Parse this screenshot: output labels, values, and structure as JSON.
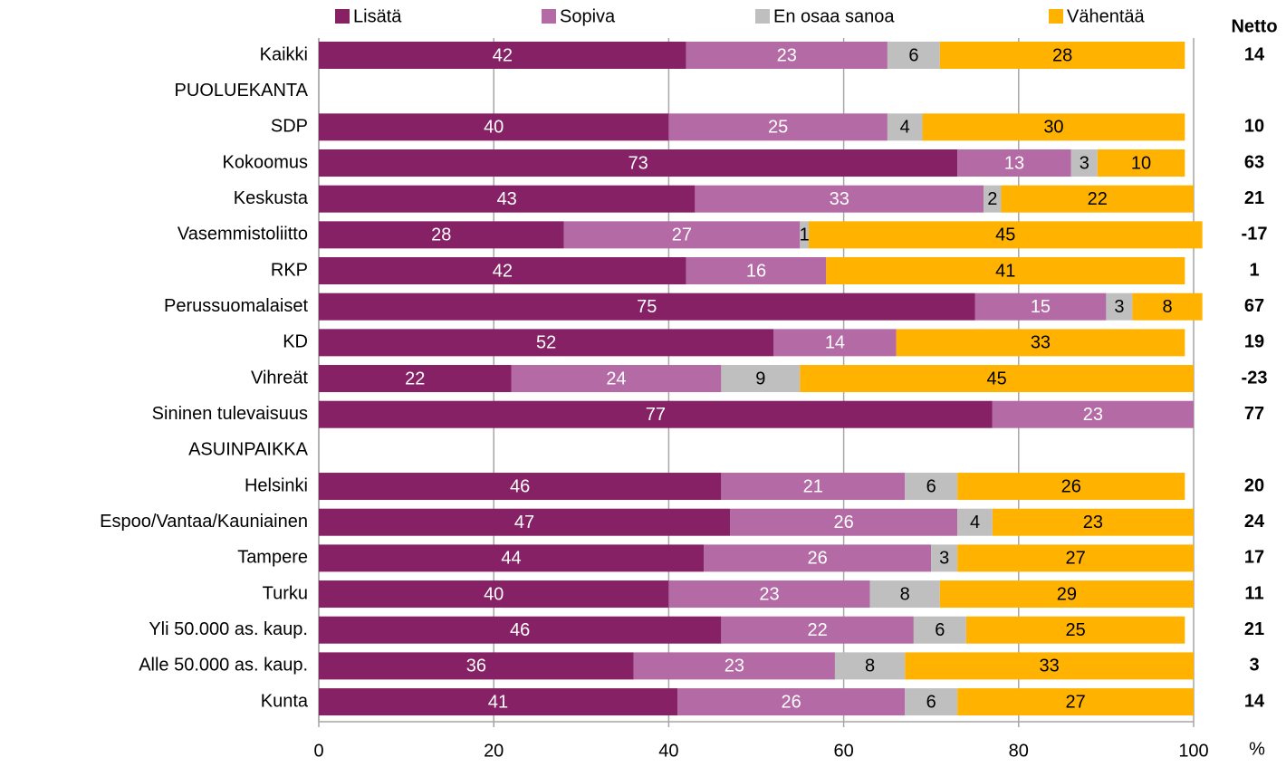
{
  "chart_data": {
    "type": "stacked_barh",
    "categories": [
      "Kaikki",
      "PUOLUEKANTA",
      "SDP",
      "Kokoomus",
      "Keskusta",
      "Vasemmistoliitto",
      "RKP",
      "Perussuomalaiset",
      "KD",
      "Vihreät",
      "Sininen tulevaisuus",
      "ASUINPAIKKA",
      "Helsinki",
      "Espoo/Vantaa/Kauniainen",
      "Tampere",
      "Turku",
      "Yli 50.000 as. kaup.",
      "Alle 50.000 as. kaup.",
      "Kunta"
    ],
    "series": [
      {
        "name": "Lisätä",
        "color": "#862165",
        "label_color": "#ffffff",
        "values": [
          42,
          null,
          40,
          73,
          43,
          28,
          42,
          75,
          52,
          22,
          77,
          null,
          46,
          47,
          44,
          40,
          46,
          36,
          41
        ]
      },
      {
        "name": "Sopiva",
        "color": "#b46aa4",
        "label_color": "#ffffff",
        "values": [
          23,
          null,
          25,
          13,
          33,
          27,
          16,
          15,
          14,
          24,
          23,
          null,
          21,
          26,
          26,
          23,
          22,
          23,
          26
        ]
      },
      {
        "name": "En osaa sanoa",
        "color": "#bfbfbf",
        "label_color": "#000000",
        "values": [
          6,
          null,
          4,
          3,
          2,
          1,
          null,
          3,
          null,
          9,
          null,
          null,
          6,
          4,
          3,
          8,
          6,
          8,
          6
        ]
      },
      {
        "name": "Vähentää",
        "color": "#ffb300",
        "label_color": "#000000",
        "values": [
          28,
          null,
          30,
          10,
          22,
          45,
          41,
          8,
          33,
          45,
          null,
          null,
          26,
          23,
          27,
          29,
          25,
          33,
          27
        ]
      }
    ],
    "netto_title": "Netto",
    "netto": [
      14,
      null,
      10,
      63,
      21,
      -17,
      1,
      67,
      19,
      -23,
      77,
      null,
      20,
      24,
      17,
      11,
      21,
      3,
      14
    ],
    "xlim": [
      0,
      100
    ],
    "xticks": [
      0,
      20,
      40,
      60,
      80,
      100
    ],
    "x_unit": "%",
    "grid": true,
    "legend": "top"
  }
}
